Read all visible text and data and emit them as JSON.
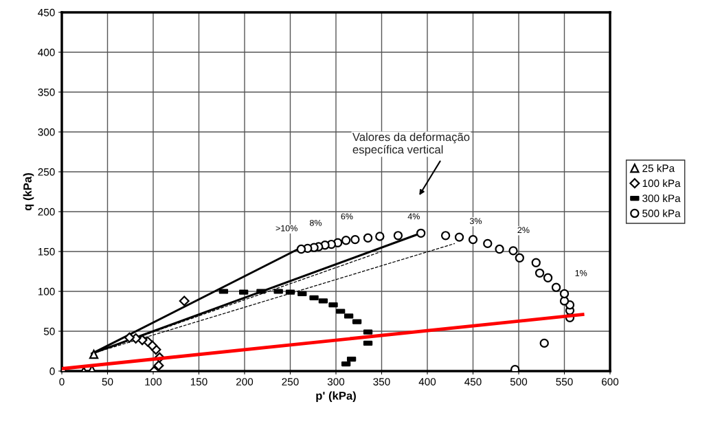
{
  "chart_data": {
    "type": "scatter",
    "xlabel": "p' (kPa)",
    "ylabel": "q (kPa)",
    "xlim": [
      0,
      600
    ],
    "ylim": [
      0,
      450
    ],
    "xticks": [
      0,
      50,
      100,
      150,
      200,
      250,
      300,
      350,
      400,
      450,
      500,
      550,
      600
    ],
    "yticks": [
      0,
      50,
      100,
      150,
      200,
      250,
      300,
      350,
      400,
      450
    ],
    "grid": true,
    "legend": "right",
    "series": [
      {
        "name": "25 kPa",
        "marker": "triangle",
        "color": "#000000",
        "x": [
          24,
          33,
          35
        ],
        "values": [
          0,
          2,
          21
        ]
      },
      {
        "name": "100 kPa",
        "marker": "diamond",
        "color": "#000000",
        "x": [
          101,
          106,
          107,
          103,
          99,
          94,
          88,
          81,
          74,
          134
        ],
        "values": [
          0,
          7,
          17,
          27,
          32,
          37,
          39,
          41,
          42,
          88
        ]
      },
      {
        "name": "300 kPa",
        "marker": "square",
        "color": "#000000",
        "x": [
          311,
          317,
          335,
          335,
          323,
          314,
          305,
          297,
          286,
          276,
          263,
          250,
          237,
          218,
          199,
          177
        ],
        "values": [
          9,
          15,
          35,
          49,
          62,
          69,
          75,
          83,
          88,
          92,
          97,
          99,
          100,
          100,
          99,
          100
        ]
      },
      {
        "name": "500 kPa",
        "marker": "circle",
        "color": "#000000",
        "x": [
          0,
          496,
          528,
          556,
          556,
          556,
          550,
          550,
          541,
          532,
          523,
          519,
          501,
          494,
          479,
          466,
          450,
          435,
          420,
          393,
          368,
          348,
          335,
          321,
          311,
          302,
          295,
          288,
          281,
          276,
          269,
          262
        ],
        "values": [
          0,
          2,
          35,
          67,
          76,
          83,
          88,
          97,
          105,
          117,
          123,
          136,
          142,
          151,
          153,
          160,
          165,
          168,
          170,
          173,
          170,
          169,
          167,
          165,
          164,
          161,
          159,
          158,
          156,
          155,
          154,
          153
        ]
      },
      {
        "type": "line",
        "line_style": "solid",
        "color": "#000000",
        "x": [
          33,
          262
        ],
        "values": [
          22,
          155
        ]
      },
      {
        "type": "line",
        "line_style": "solid",
        "color": "#000000",
        "x": [
          33,
          393
        ],
        "values": [
          22,
          173
        ]
      },
      {
        "type": "line",
        "line_style": "dashed",
        "color": "#000000",
        "x": [
          33,
          350
        ],
        "values": [
          22,
          150
        ]
      },
      {
        "type": "line",
        "line_style": "dashed",
        "color": "#000000",
        "x": [
          33,
          430
        ],
        "values": [
          22,
          160
        ]
      },
      {
        "type": "line",
        "line_style": "solid",
        "color": "#ff0000",
        "x": [
          0,
          570
        ],
        "values": [
          3,
          71
        ]
      }
    ],
    "annotations": [
      ">10%",
      "8%",
      "6%",
      "4%",
      "3%",
      "2%",
      "1%",
      "Valores da deformação\nespecífica vertical"
    ]
  }
}
